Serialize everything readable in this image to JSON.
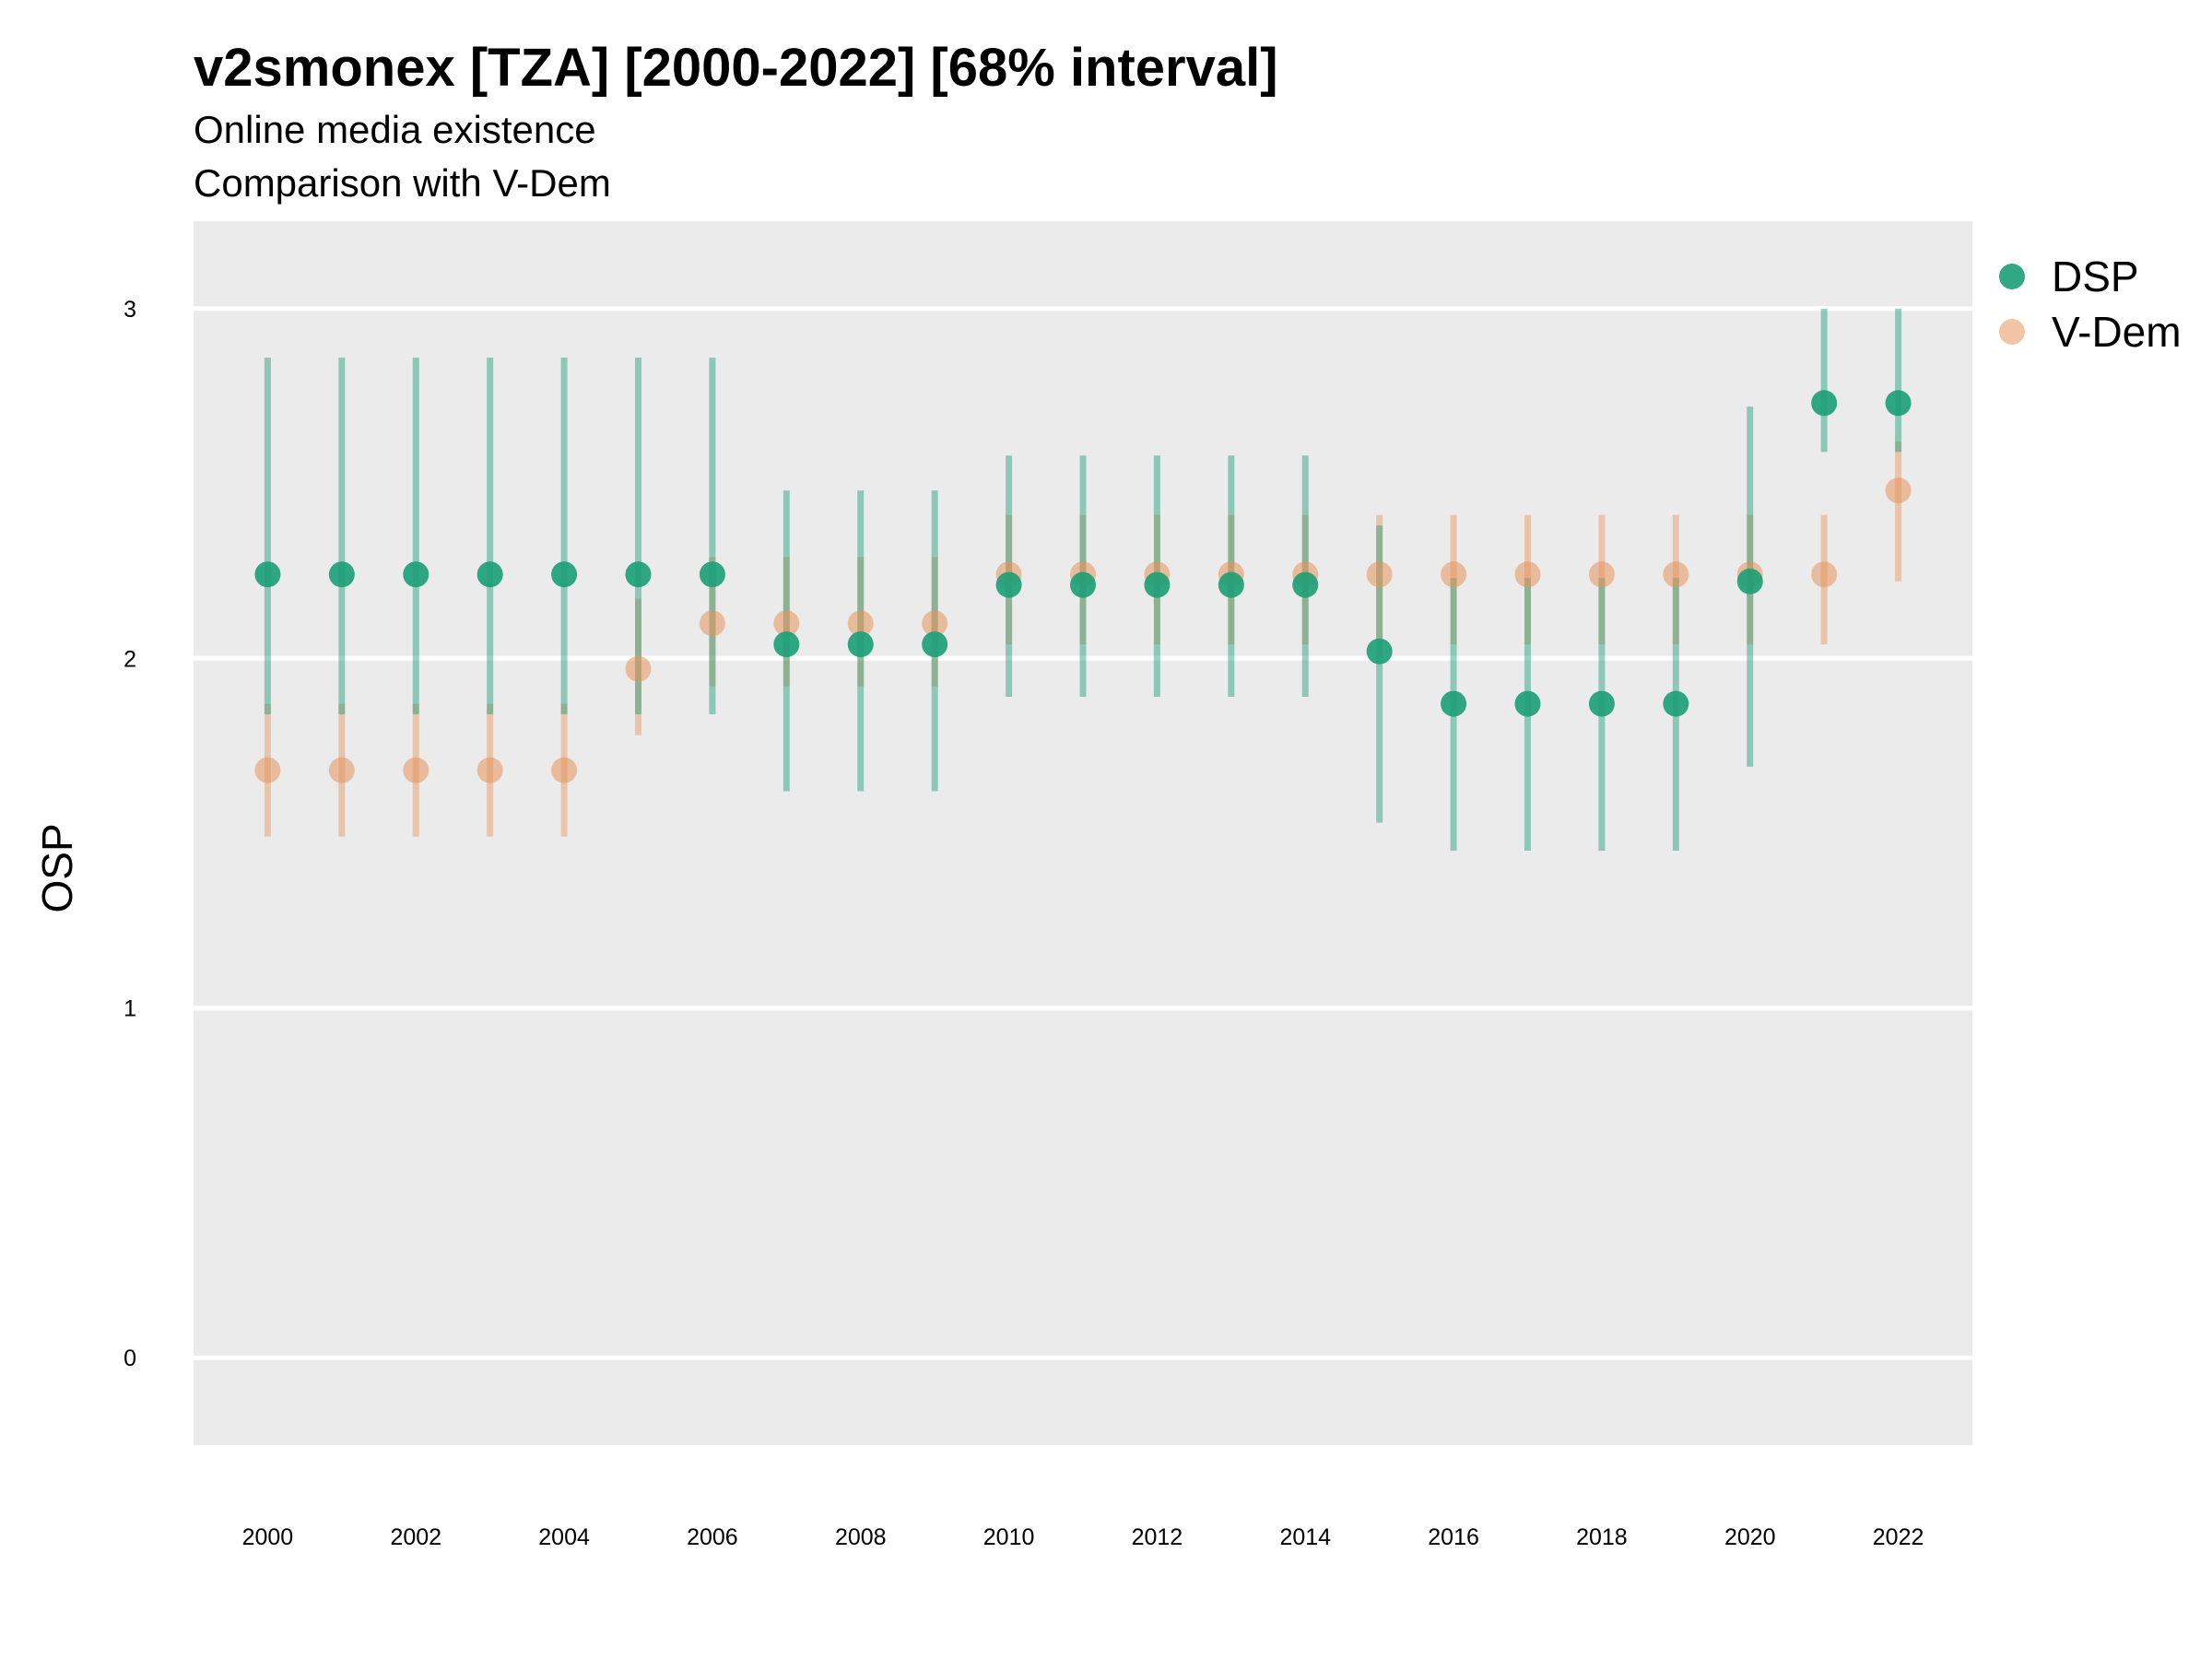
{
  "chart_data": {
    "type": "scatter",
    "title": "v2smonex [TZA] [2000-2022] [68% interval]",
    "subtitle_lines": [
      "Online media existence",
      "Comparison with V-Dem"
    ],
    "xlabel": "",
    "ylabel": "OSP",
    "xlim": [
      1999,
      2023
    ],
    "ylim": [
      -0.25,
      3.25
    ],
    "x_ticks": [
      2000,
      2002,
      2004,
      2006,
      2008,
      2010,
      2012,
      2014,
      2016,
      2018,
      2020,
      2022
    ],
    "y_ticks": [
      0,
      1,
      2,
      3
    ],
    "grid": true,
    "legend_position": "right",
    "x": [
      2000,
      2001,
      2002,
      2003,
      2004,
      2005,
      2006,
      2007,
      2008,
      2009,
      2010,
      2011,
      2012,
      2013,
      2014,
      2015,
      2016,
      2017,
      2018,
      2019,
      2020,
      2021,
      2022
    ],
    "series": [
      {
        "name": "V-Dem",
        "color": "#E6945C",
        "values": [
          1.68,
          1.68,
          1.68,
          1.68,
          1.68,
          1.97,
          2.1,
          2.1,
          2.1,
          2.1,
          2.24,
          2.24,
          2.24,
          2.24,
          2.24,
          2.24,
          2.24,
          2.24,
          2.24,
          2.24,
          2.24,
          2.24,
          2.48
        ],
        "lower": [
          1.49,
          1.49,
          1.49,
          1.49,
          1.49,
          1.78,
          1.92,
          1.92,
          1.92,
          1.92,
          2.04,
          2.04,
          2.04,
          2.04,
          2.04,
          2.04,
          2.04,
          2.04,
          2.04,
          2.04,
          2.04,
          2.04,
          2.22
        ],
        "upper": [
          1.87,
          1.87,
          1.87,
          1.87,
          1.87,
          2.17,
          2.29,
          2.29,
          2.29,
          2.29,
          2.41,
          2.41,
          2.41,
          2.41,
          2.41,
          2.41,
          2.41,
          2.41,
          2.41,
          2.41,
          2.41,
          2.41,
          2.62
        ]
      },
      {
        "name": "DSP",
        "color": "#1B9E77",
        "values": [
          2.24,
          2.24,
          2.24,
          2.24,
          2.24,
          2.24,
          2.24,
          2.04,
          2.04,
          2.04,
          2.21,
          2.21,
          2.21,
          2.21,
          2.21,
          2.02,
          1.87,
          1.87,
          1.87,
          1.87,
          2.22,
          2.73,
          2.73
        ],
        "lower": [
          1.84,
          1.84,
          1.84,
          1.84,
          1.84,
          1.84,
          1.84,
          1.62,
          1.62,
          1.62,
          1.89,
          1.89,
          1.89,
          1.89,
          1.89,
          1.53,
          1.45,
          1.45,
          1.45,
          1.45,
          1.69,
          2.59,
          2.59
        ],
        "upper": [
          2.86,
          2.86,
          2.86,
          2.86,
          2.86,
          2.86,
          2.86,
          2.48,
          2.48,
          2.48,
          2.58,
          2.58,
          2.58,
          2.58,
          2.58,
          2.38,
          2.23,
          2.23,
          2.23,
          2.23,
          2.72,
          3.0,
          3.0
        ]
      }
    ],
    "legend_order": [
      "DSP",
      "V-Dem"
    ]
  }
}
